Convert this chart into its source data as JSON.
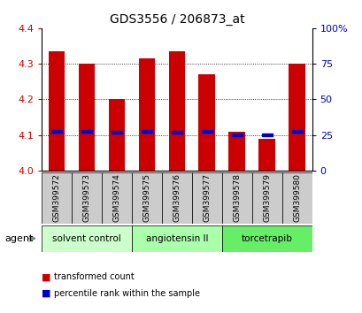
{
  "title": "GDS3556 / 206873_at",
  "samples": [
    "GSM399572",
    "GSM399573",
    "GSM399574",
    "GSM399575",
    "GSM399576",
    "GSM399577",
    "GSM399578",
    "GSM399579",
    "GSM399580"
  ],
  "bar_values": [
    4.335,
    4.3,
    4.2,
    4.315,
    4.335,
    4.27,
    4.11,
    4.09,
    4.3
  ],
  "percentile_values": [
    4.11,
    4.11,
    4.107,
    4.11,
    4.107,
    4.11,
    4.1,
    4.1,
    4.11
  ],
  "bar_color": "#cc0000",
  "percentile_color": "#0000cc",
  "ylim_left": [
    4.0,
    4.4
  ],
  "ylim_right": [
    0,
    100
  ],
  "yticks_left": [
    4.0,
    4.1,
    4.2,
    4.3,
    4.4
  ],
  "yticks_right": [
    0,
    25,
    50,
    75,
    100
  ],
  "ytick_labels_right": [
    "0",
    "25",
    "50",
    "75",
    "100%"
  ],
  "groups": [
    {
      "label": "solvent control",
      "samples": [
        0,
        1,
        2
      ],
      "color": "#ccffcc"
    },
    {
      "label": "angiotensin II",
      "samples": [
        3,
        4,
        5
      ],
      "color": "#aaffaa"
    },
    {
      "label": "torcetrapib",
      "samples": [
        6,
        7,
        8
      ],
      "color": "#66ee66"
    }
  ],
  "agent_label": "agent",
  "legend_bar_label": "transformed count",
  "legend_pct_label": "percentile rank within the sample",
  "bar_width": 0.55,
  "left_tick_color": "#cc0000",
  "right_tick_color": "#0000cc",
  "xlabel_area_color": "#cccccc",
  "bar_border_color": "#cc0000"
}
